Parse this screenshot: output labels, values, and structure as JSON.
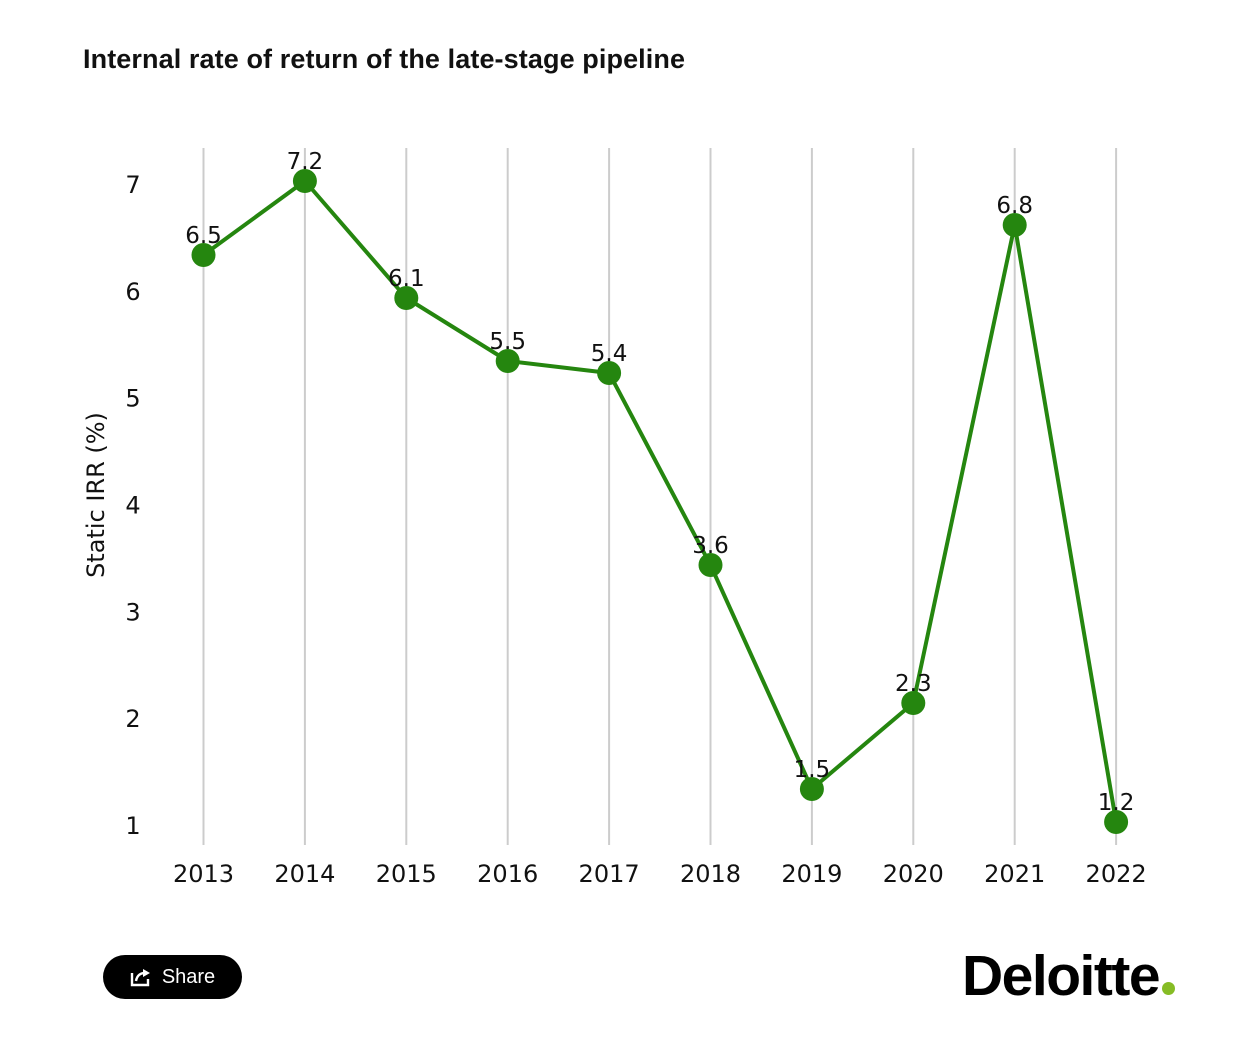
{
  "title": "Internal rate of return of the late-stage pipeline",
  "share": {
    "label": "Share",
    "icon": "share-icon"
  },
  "brand": {
    "name": "Deloitte",
    "dot_color": "#86bc25"
  },
  "colors": {
    "series": "#25860f",
    "grid": "#cccccc",
    "text": "#111111"
  },
  "chart_data": {
    "type": "line",
    "title": "Internal rate of return of the late-stage pipeline",
    "xlabel": "",
    "ylabel": "Static IRR (%)",
    "categories": [
      "2013",
      "2014",
      "2015",
      "2016",
      "2017",
      "2018",
      "2019",
      "2020",
      "2021",
      "2022"
    ],
    "series": [
      {
        "name": "Static IRR (%)",
        "values": [
          6.5,
          7.2,
          6.1,
          5.5,
          5.4,
          3.6,
          1.5,
          2.3,
          6.8,
          1.2
        ]
      }
    ],
    "data_labels": [
      "6.5",
      "7.2",
      "6.1",
      "5.5",
      "5.4",
      "3.6",
      "1.5",
      "2.3",
      "6.8",
      "1.2"
    ],
    "yticks": [
      "1",
      "2",
      "3",
      "4",
      "5",
      "6",
      "7"
    ],
    "ylim": [
      1,
      7
    ],
    "grid": "vertical",
    "legend": "none"
  }
}
